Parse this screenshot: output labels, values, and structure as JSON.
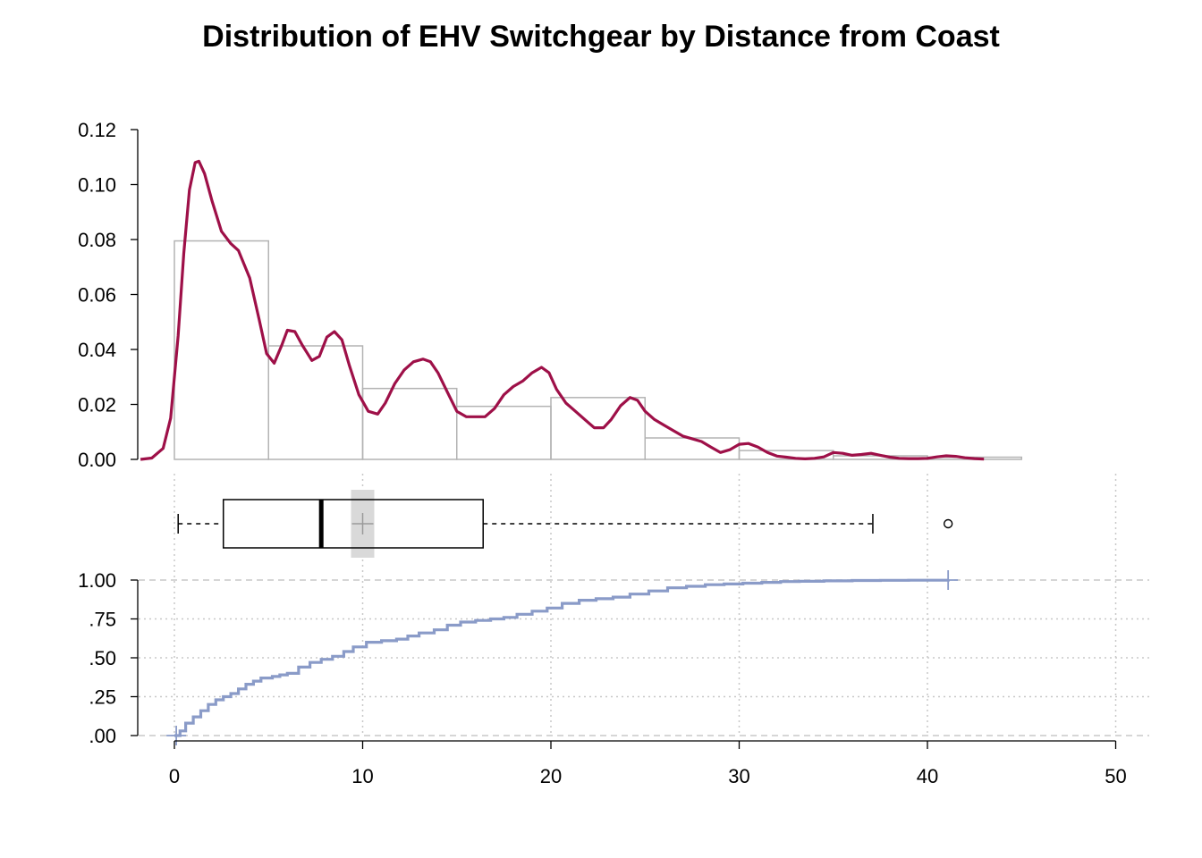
{
  "chart_data": {
    "type": "histogram+density+boxplot+ecdf",
    "title": "Distribution of EHV Switchgear by Distance from Coast",
    "x_axis": {
      "ticks": [
        0,
        10,
        20,
        30,
        40,
        50
      ],
      "tick_labels": [
        "0",
        "10",
        "20",
        "30",
        "40",
        "50"
      ],
      "xlim": [
        -2,
        52
      ]
    },
    "histogram": {
      "bin_edges": [
        0,
        5,
        10,
        15,
        20,
        25,
        30,
        35,
        40,
        45
      ],
      "densities": [
        0.0795,
        0.0413,
        0.0258,
        0.0193,
        0.0225,
        0.0078,
        0.0032,
        0.0013,
        0.0008
      ],
      "ylim": [
        0,
        0.12
      ],
      "y_ticks": [
        0,
        0.02,
        0.04,
        0.06,
        0.08,
        0.1,
        0.12
      ],
      "y_tick_labels": [
        "0.00",
        "0.02",
        "0.04",
        "0.06",
        "0.08",
        "0.10",
        "0.12"
      ],
      "bar_stroke": "#b3b3b3"
    },
    "density": {
      "color": "#9e1048",
      "x": [
        -1.8,
        -1.2,
        -0.6,
        -0.2,
        0.2,
        0.5,
        0.8,
        1.1,
        1.3,
        1.6,
        2.0,
        2.5,
        3.0,
        3.4,
        4.0,
        4.5,
        4.9,
        5.3,
        5.7,
        6.0,
        6.4,
        6.8,
        7.3,
        7.7,
        8.1,
        8.5,
        8.9,
        9.3,
        9.8,
        10.3,
        10.8,
        11.2,
        11.7,
        12.2,
        12.7,
        13.2,
        13.6,
        14.0,
        14.5,
        15.0,
        15.5,
        16.0,
        16.5,
        17.0,
        17.5,
        18.0,
        18.5,
        19.0,
        19.5,
        19.9,
        20.3,
        20.8,
        21.3,
        21.8,
        22.3,
        22.8,
        23.2,
        23.7,
        24.2,
        24.6,
        25.0,
        25.5,
        26.0,
        26.5,
        27.0,
        27.5,
        28.0,
        28.5,
        29.0,
        29.5,
        30.0,
        30.5,
        31.0,
        31.5,
        32.0,
        32.5,
        33.0,
        33.5,
        34.0,
        34.5,
        35.0,
        35.5,
        36.0,
        36.5,
        37.0,
        37.5,
        38.0,
        38.5,
        39.0,
        39.5,
        40.0,
        40.5,
        41.0,
        41.5,
        42.0,
        42.5,
        43.0
      ],
      "y": [
        0.0,
        0.0005,
        0.004,
        0.015,
        0.045,
        0.075,
        0.098,
        0.108,
        0.1085,
        0.104,
        0.094,
        0.083,
        0.0785,
        0.076,
        0.066,
        0.051,
        0.0385,
        0.035,
        0.0415,
        0.047,
        0.0465,
        0.0415,
        0.036,
        0.0375,
        0.0445,
        0.0465,
        0.0435,
        0.034,
        0.0235,
        0.0175,
        0.0165,
        0.0205,
        0.0275,
        0.0325,
        0.0355,
        0.0365,
        0.0355,
        0.0315,
        0.0245,
        0.0175,
        0.0155,
        0.0155,
        0.0155,
        0.0185,
        0.0235,
        0.0265,
        0.0285,
        0.0315,
        0.0335,
        0.0315,
        0.0255,
        0.0205,
        0.0175,
        0.0145,
        0.0115,
        0.0115,
        0.0145,
        0.0195,
        0.0225,
        0.0215,
        0.0175,
        0.0145,
        0.0125,
        0.0105,
        0.0085,
        0.0075,
        0.0065,
        0.0045,
        0.0025,
        0.0035,
        0.0055,
        0.0058,
        0.0045,
        0.0025,
        0.0012,
        0.0008,
        0.0004,
        0.0002,
        0.0004,
        0.0009,
        0.0025,
        0.0022,
        0.0015,
        0.0018,
        0.0022,
        0.0015,
        0.0008,
        0.0004,
        0.0003,
        0.0003,
        0.0004,
        0.0009,
        0.0013,
        0.0011,
        0.0006,
        0.0003,
        0.0001
      ]
    },
    "boxplot": {
      "whisker_low": 0.2,
      "q1": 2.6,
      "median": 7.8,
      "mean": 10.0,
      "q3": 16.4,
      "whisker_high": 37.1,
      "outliers": [
        41.1
      ],
      "mean_band_color": "#d9d9d9"
    },
    "ecdf": {
      "color": "#8a9bc8",
      "ylim": [
        0,
        1
      ],
      "y_ticks": [
        0,
        0.25,
        0.5,
        0.75,
        1.0
      ],
      "y_tick_labels": [
        ".00",
        ".25",
        ".50",
        ".75",
        "1.00"
      ],
      "x": [
        0.0,
        0.3,
        0.6,
        1.0,
        1.4,
        1.8,
        2.2,
        2.6,
        3.0,
        3.4,
        3.8,
        4.2,
        4.6,
        5.2,
        5.6,
        6.0,
        6.6,
        7.2,
        7.8,
        8.4,
        9.0,
        9.5,
        10.2,
        11.0,
        11.8,
        12.4,
        13.0,
        13.8,
        14.5,
        15.2,
        16.0,
        16.8,
        17.5,
        18.2,
        19.0,
        19.8,
        20.6,
        21.5,
        22.4,
        23.3,
        24.2,
        25.2,
        26.2,
        27.2,
        28.2,
        29.2,
        30.2,
        31.2,
        32.2,
        33.2,
        34.5,
        36.0,
        37.5,
        39.0,
        41.1
      ],
      "y": [
        0.0,
        0.03,
        0.08,
        0.12,
        0.16,
        0.2,
        0.23,
        0.25,
        0.27,
        0.3,
        0.33,
        0.35,
        0.37,
        0.38,
        0.39,
        0.4,
        0.44,
        0.47,
        0.49,
        0.51,
        0.54,
        0.57,
        0.6,
        0.61,
        0.62,
        0.64,
        0.66,
        0.68,
        0.71,
        0.73,
        0.74,
        0.75,
        0.76,
        0.78,
        0.8,
        0.82,
        0.85,
        0.87,
        0.88,
        0.89,
        0.91,
        0.93,
        0.95,
        0.96,
        0.97,
        0.975,
        0.98,
        0.985,
        0.99,
        0.992,
        0.995,
        0.997,
        0.998,
        0.999,
        1.0
      ],
      "start_marker_x": 0.1,
      "end_marker_x": 41.1
    },
    "grid": "dotted",
    "grid_color": "#c8c8c8"
  }
}
